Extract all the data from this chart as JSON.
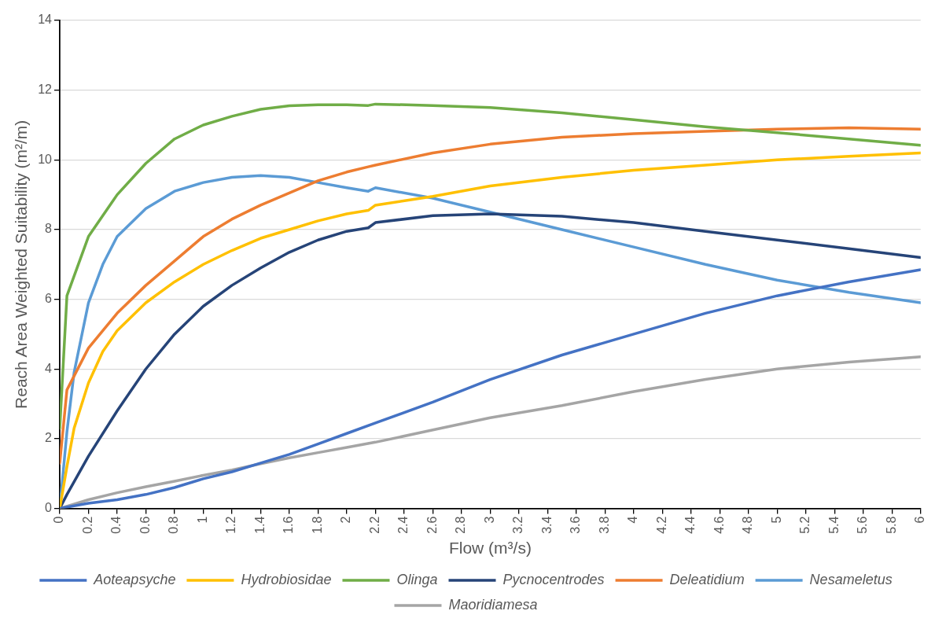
{
  "chart_data": {
    "type": "line",
    "xlabel": "Flow (m³/s)",
    "ylabel": "Reach Area Weighted Suitability (m²/m)",
    "xlim": [
      0,
      6
    ],
    "xticks": [
      0,
      0.2,
      0.4,
      0.6,
      0.8,
      1,
      1.2,
      1.4,
      1.6,
      1.8,
      2,
      2.2,
      2.4,
      2.6,
      2.8,
      3,
      3.2,
      3.4,
      3.6,
      3.8,
      4,
      4.2,
      4.4,
      4.6,
      4.8,
      5,
      5.2,
      5.4,
      5.6,
      5.8,
      6
    ],
    "ylim": [
      0,
      14
    ],
    "yticks": [
      0,
      2,
      4,
      6,
      8,
      10,
      12,
      14
    ],
    "grid": "y",
    "legend": "bottom",
    "marker": "none",
    "line_style": "solid",
    "series": [
      {
        "name": "Aoteapsyche",
        "color": "#4472c4",
        "x": [
          0,
          0.2,
          0.4,
          0.6,
          0.8,
          1,
          1.2,
          1.4,
          1.6,
          1.8,
          2,
          2.2,
          2.6,
          3,
          3.5,
          4,
          4.5,
          5,
          5.5,
          6
        ],
        "values": [
          0,
          0.15,
          0.25,
          0.4,
          0.6,
          0.85,
          1.05,
          1.3,
          1.55,
          1.85,
          2.15,
          2.45,
          3.05,
          3.7,
          4.4,
          5.0,
          5.6,
          6.1,
          6.5,
          6.85
        ]
      },
      {
        "name": "Hydrobiosidae",
        "color": "#ffc000",
        "x": [
          0,
          0.05,
          0.1,
          0.2,
          0.3,
          0.4,
          0.6,
          0.8,
          1,
          1.2,
          1.4,
          1.6,
          1.8,
          2,
          2.15,
          2.2,
          2.6,
          3,
          3.5,
          4,
          4.5,
          5,
          5.5,
          6
        ],
        "values": [
          0,
          1.2,
          2.3,
          3.6,
          4.5,
          5.1,
          5.9,
          6.5,
          7.0,
          7.4,
          7.75,
          8.0,
          8.25,
          8.45,
          8.55,
          8.7,
          8.95,
          9.25,
          9.5,
          9.7,
          9.85,
          10.0,
          10.1,
          10.2
        ]
      },
      {
        "name": "Olinga",
        "color": "#70ad47",
        "x": [
          0,
          0.05,
          0.2,
          0.4,
          0.6,
          0.8,
          1,
          1.2,
          1.4,
          1.6,
          1.8,
          2,
          2.15,
          2.2,
          2.6,
          3,
          3.5,
          4,
          4.5,
          5,
          5.5,
          6
        ],
        "values": [
          2.3,
          6.1,
          7.8,
          9.0,
          9.9,
          10.6,
          11.0,
          11.25,
          11.45,
          11.55,
          11.58,
          11.58,
          11.56,
          11.6,
          11.56,
          11.5,
          11.35,
          11.15,
          10.95,
          10.78,
          10.6,
          10.42
        ]
      },
      {
        "name": "Pycnocentrodes",
        "color": "#264478",
        "x": [
          0,
          0.05,
          0.2,
          0.4,
          0.6,
          0.8,
          1,
          1.2,
          1.4,
          1.6,
          1.8,
          2,
          2.15,
          2.2,
          2.6,
          3,
          3.5,
          4,
          4.5,
          5,
          5.5,
          6
        ],
        "values": [
          0,
          0.4,
          1.5,
          2.8,
          4.0,
          5.0,
          5.8,
          6.4,
          6.9,
          7.35,
          7.7,
          7.95,
          8.05,
          8.2,
          8.4,
          8.45,
          8.38,
          8.2,
          7.95,
          7.7,
          7.45,
          7.2
        ]
      },
      {
        "name": "Deleatidium",
        "color": "#ed7d31",
        "x": [
          0,
          0.05,
          0.2,
          0.4,
          0.6,
          0.8,
          1,
          1.2,
          1.4,
          1.6,
          1.8,
          2,
          2.15,
          2.2,
          2.6,
          3,
          3.5,
          4,
          4.5,
          5,
          5.5,
          6
        ],
        "values": [
          1.3,
          3.4,
          4.6,
          5.6,
          6.4,
          7.1,
          7.8,
          8.3,
          8.7,
          9.05,
          9.4,
          9.65,
          9.8,
          9.85,
          10.2,
          10.45,
          10.65,
          10.75,
          10.82,
          10.88,
          10.92,
          10.88
        ]
      },
      {
        "name": "Nesameletus",
        "color": "#5b9bd5",
        "x": [
          0,
          0.05,
          0.1,
          0.2,
          0.3,
          0.4,
          0.6,
          0.8,
          1,
          1.2,
          1.4,
          1.6,
          1.8,
          2,
          2.15,
          2.2,
          2.6,
          3,
          3.5,
          4,
          4.5,
          5,
          5.5,
          6
        ],
        "values": [
          0,
          2.2,
          3.9,
          5.9,
          7.0,
          7.8,
          8.6,
          9.1,
          9.35,
          9.5,
          9.55,
          9.5,
          9.35,
          9.2,
          9.1,
          9.2,
          8.9,
          8.5,
          8.0,
          7.5,
          7.0,
          6.55,
          6.2,
          5.9
        ]
      },
      {
        "name": "Maoridiamesa",
        "color": "#a5a5a5",
        "x": [
          0,
          0.2,
          0.4,
          0.6,
          0.8,
          1,
          1.2,
          1.4,
          1.6,
          1.8,
          2,
          2.2,
          2.6,
          3,
          3.5,
          4,
          4.5,
          5,
          5.5,
          6
        ],
        "values": [
          0,
          0.25,
          0.45,
          0.62,
          0.78,
          0.95,
          1.1,
          1.28,
          1.45,
          1.6,
          1.75,
          1.9,
          2.25,
          2.6,
          2.95,
          3.35,
          3.7,
          4.0,
          4.2,
          4.35
        ]
      }
    ]
  }
}
